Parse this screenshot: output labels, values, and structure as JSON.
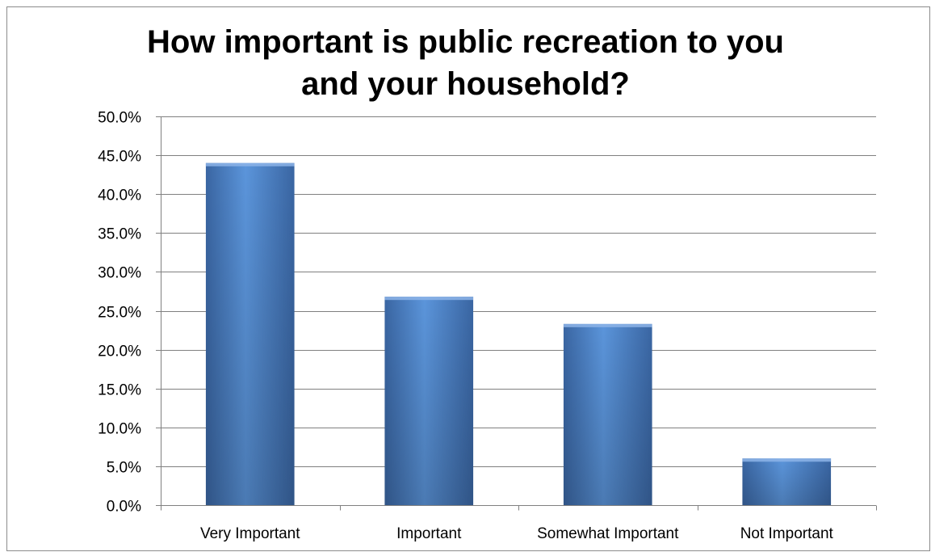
{
  "chart_data": {
    "type": "bar",
    "title_lines": [
      "How important is public recreation to you",
      "and your household?"
    ],
    "categories": [
      "Very Important",
      "Important",
      "Somewhat Important",
      "Not Important"
    ],
    "values": [
      44.0,
      26.8,
      23.3,
      6.0
    ],
    "yticks": [
      "0.0%",
      "5.0%",
      "10.0%",
      "15.0%",
      "20.0%",
      "25.0%",
      "30.0%",
      "35.0%",
      "40.0%",
      "45.0%",
      "50.0%"
    ],
    "ylim": [
      0,
      50
    ],
    "ytick_step": 5,
    "grid": true,
    "legend": "none",
    "bar_color": "#4a7ebf",
    "bar_color_light": "#5b95db",
    "bar_color_dark": "#3a66a3",
    "grid_color": "#808080"
  }
}
